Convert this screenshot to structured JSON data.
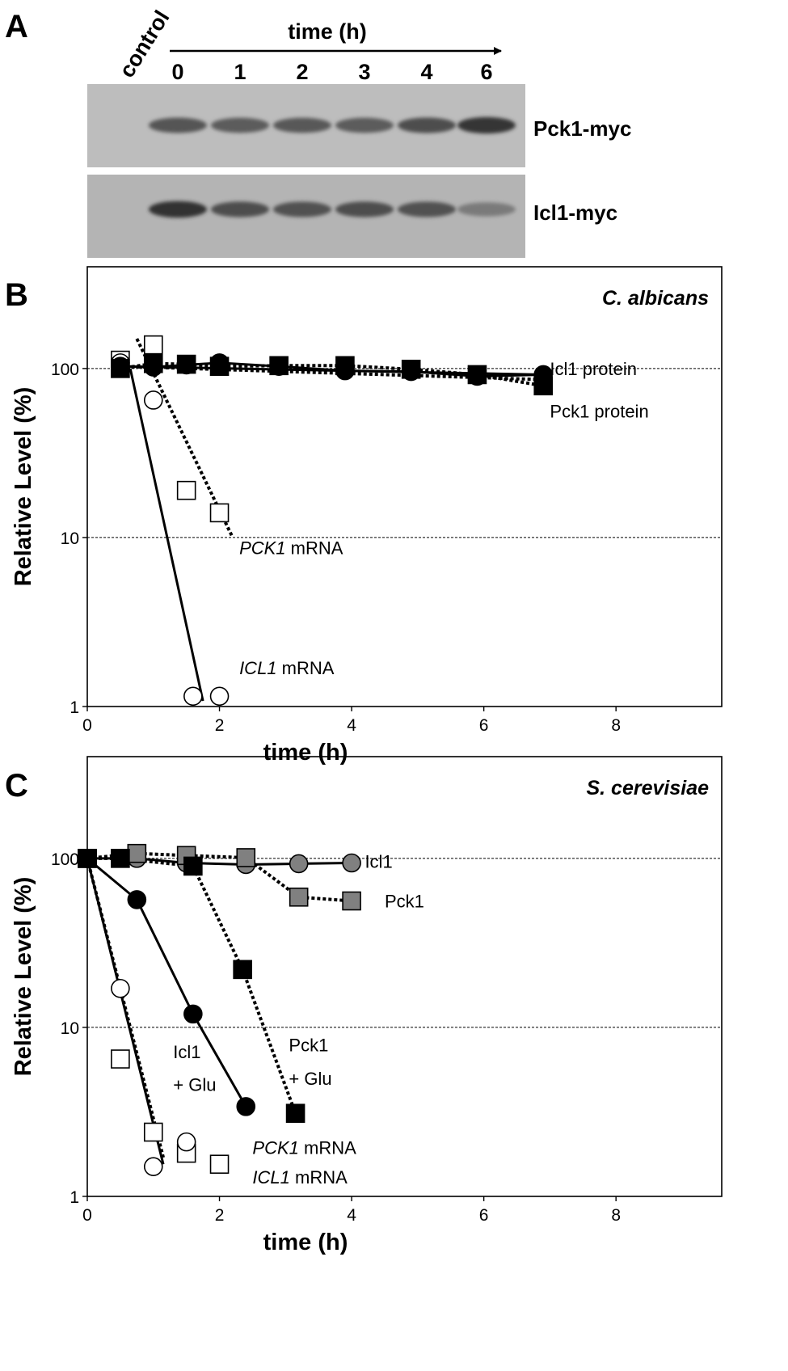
{
  "panel_a": {
    "label": "A",
    "control_label": "control",
    "time_header": "time (h)",
    "lanes": [
      "0",
      "1",
      "2",
      "3",
      "4",
      "6"
    ],
    "blots": [
      {
        "name": "Pck1-myc",
        "band_intensity": [
          0.62,
          0.58,
          0.6,
          0.58,
          0.66,
          0.8
        ]
      },
      {
        "name": "Icl1-myc",
        "band_intensity": [
          0.82,
          0.66,
          0.64,
          0.66,
          0.64,
          0.4
        ]
      }
    ]
  },
  "chart_data": [
    {
      "panel": "B",
      "type": "scatter",
      "title": "C. albicans",
      "xlabel": "time (h)",
      "ylabel": "Relative Level (%)",
      "xlim": [
        0,
        9.6
      ],
      "ylim": [
        1,
        400
      ],
      "yscale": "log",
      "x_ticks": [
        0,
        2,
        4,
        6,
        8
      ],
      "y_ticks": [
        1,
        10,
        100
      ],
      "reference_lines": [
        100,
        10
      ],
      "series": [
        {
          "name": "Icl1 protein",
          "marker": "circle",
          "fill": "#000000",
          "line": "solid",
          "x": [
            0.5,
            1.0,
            1.5,
            2.0,
            2.9,
            3.9,
            4.9,
            5.9,
            6.9
          ],
          "y": [
            103,
            102,
            105,
            108,
            103,
            97,
            96,
            90,
            92
          ]
        },
        {
          "name": "Pck1 protein",
          "marker": "square",
          "fill": "#000000",
          "line": "dotted",
          "x": [
            0.5,
            1.0,
            1.5,
            2.0,
            2.9,
            3.9,
            4.9,
            5.9,
            6.9
          ],
          "y": [
            100,
            107,
            106,
            103,
            104,
            104,
            99,
            92,
            79
          ]
        },
        {
          "name": "PCK1 mRNA",
          "marker": "square",
          "fill": "#ffffff",
          "line": "dotted",
          "x": [
            0.5,
            1.0,
            1.5,
            2.0
          ],
          "y": [
            112,
            138,
            19,
            14
          ]
        },
        {
          "name": "ICL1 mRNA",
          "marker": "circle",
          "fill": "#ffffff",
          "line": "solid",
          "x": [
            0.5,
            1.0,
            1.6,
            2.0
          ],
          "y": [
            108,
            65,
            1.15,
            1.15
          ]
        }
      ],
      "fit_lines": [
        {
          "style": "solid",
          "x": [
            0.5,
            6.9
          ],
          "y": [
            103,
            92
          ]
        },
        {
          "style": "dotted",
          "x": [
            0.5,
            6.9
          ],
          "y": [
            103,
            86
          ]
        },
        {
          "style": "dotted",
          "x": [
            0.75,
            2.2
          ],
          "y": [
            150,
            10
          ]
        },
        {
          "style": "solid",
          "x": [
            0.65,
            1.75
          ],
          "y": [
            100,
            1.08
          ]
        }
      ],
      "annotations": [
        {
          "italic": "",
          "text": "Icl1 protein",
          "x": 7.0,
          "y": 100
        },
        {
          "italic": "",
          "text": "Pck1 protein",
          "x": 7.0,
          "y": 56
        },
        {
          "italic": "PCK1",
          "text": " mRNA",
          "x": 2.3,
          "y": 8.7
        },
        {
          "italic": "ICL1",
          "text": " mRNA",
          "x": 2.3,
          "y": 1.7
        }
      ]
    },
    {
      "panel": "C",
      "type": "scatter",
      "title": "S. cerevisiae",
      "xlabel": "time (h)",
      "ylabel": "Relative Level (%)",
      "xlim": [
        0,
        9.6
      ],
      "ylim": [
        1,
        400
      ],
      "yscale": "log",
      "x_ticks": [
        0,
        2,
        4,
        6,
        8
      ],
      "y_ticks": [
        1,
        10,
        100
      ],
      "reference_lines": [
        100,
        10
      ],
      "series": [
        {
          "name": "Icl1",
          "marker": "circle",
          "fill": "#808080",
          "line": "solid",
          "x": [
            0,
            0.75,
            1.5,
            2.4,
            3.2,
            4.0
          ],
          "y": [
            100,
            100,
            94,
            92,
            93,
            94
          ]
        },
        {
          "name": "Pck1",
          "marker": "square",
          "fill": "#808080",
          "line": "dotted",
          "x": [
            0,
            0.75,
            1.5,
            2.4,
            3.2,
            4.0
          ],
          "y": [
            100,
            107,
            104,
            101,
            59,
            56
          ]
        },
        {
          "name": "Icl1 + Glu",
          "marker": "circle",
          "fill": "#000000",
          "line": "solid",
          "x": [
            0,
            0.75,
            1.6,
            2.4
          ],
          "y": [
            100,
            57,
            12,
            3.4
          ]
        },
        {
          "name": "Pck1 + Glu",
          "marker": "square",
          "fill": "#000000",
          "line": "dotted",
          "x": [
            0,
            0.5,
            1.6,
            2.35,
            3.15
          ],
          "y": [
            100,
            100,
            90,
            22,
            3.1
          ]
        },
        {
          "name": "PCK1 mRNA",
          "marker": "square",
          "fill": "#ffffff",
          "line": "dotted",
          "x": [
            0,
            0.5,
            1.0,
            1.5,
            2.0
          ],
          "y": [
            100,
            6.5,
            2.4,
            1.8,
            1.55
          ]
        },
        {
          "name": "ICL1 mRNA",
          "marker": "circle",
          "fill": "#ffffff",
          "line": "solid",
          "x": [
            0,
            0.5,
            1.0,
            1.5
          ],
          "y": [
            100,
            17,
            1.5,
            2.1
          ]
        }
      ],
      "fit_lines": [
        {
          "style": "solid",
          "x": [
            0,
            1.15
          ],
          "y": [
            100,
            1.55
          ]
        },
        {
          "style": "dotted",
          "x": [
            0,
            1.15
          ],
          "y": [
            100,
            1.7
          ]
        }
      ],
      "annotations": [
        {
          "italic": "",
          "text": "Icl1",
          "x": 4.2,
          "y": 96
        },
        {
          "italic": "",
          "text": "Pck1",
          "x": 4.5,
          "y": 56
        },
        {
          "italic": "",
          "text": "Icl1",
          "x": 1.3,
          "y": 7.2
        },
        {
          "italic": "",
          "text": "+ Glu",
          "x": 1.3,
          "y": 4.6
        },
        {
          "italic": "",
          "text": "Pck1",
          "x": 3.05,
          "y": 7.9
        },
        {
          "italic": "",
          "text": "+ Glu",
          "x": 3.05,
          "y": 5.0
        },
        {
          "italic": "PCK1",
          "text": " mRNA",
          "x": 2.5,
          "y": 1.95
        },
        {
          "italic": "ICL1",
          "text": " mRNA",
          "x": 2.5,
          "y": 1.3
        }
      ]
    }
  ]
}
